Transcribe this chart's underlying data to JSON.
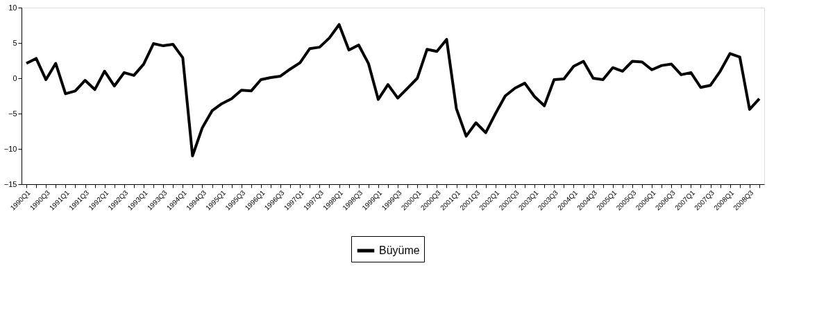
{
  "chart_data": {
    "type": "line",
    "categories": [
      "1990Q1",
      null,
      "1990Q3",
      null,
      "1991Q1",
      null,
      "1991Q3",
      null,
      "1992Q1",
      null,
      "1992Q3",
      null,
      "1993Q1",
      null,
      "1993Q3",
      null,
      "1994Q1",
      null,
      "1994Q3",
      null,
      "1995Q1",
      null,
      "1995Q3",
      null,
      "1996Q1",
      null,
      "1996Q3",
      null,
      "1997Q1",
      null,
      "1997Q3",
      null,
      "1998Q1",
      null,
      "1998Q3",
      null,
      "1999Q1",
      null,
      "1999Q3",
      null,
      "2000Q1",
      null,
      "2000Q3",
      null,
      "2001Q1",
      null,
      "2001Q3",
      null,
      "2002Q1",
      null,
      "2002Q3",
      null,
      "2003Q1",
      null,
      "2003Q3",
      null,
      "2004Q1",
      null,
      "2004Q3",
      null,
      "2005Q1",
      null,
      "2005Q3",
      null,
      "2006Q1",
      null,
      "2006Q3",
      null,
      "2007Q1",
      null,
      "2007Q3",
      null,
      "2008Q1",
      null,
      "2008Q3",
      null
    ],
    "series": [
      {
        "name": "Büyüme",
        "color": "#000000",
        "values": [
          2.1,
          2.8,
          -0.2,
          2.1,
          -2.2,
          -1.8,
          -0.3,
          -1.6,
          1.0,
          -1.1,
          0.8,
          0.4,
          2.0,
          4.9,
          4.6,
          4.8,
          2.9,
          -11.0,
          -7.0,
          -4.6,
          -3.6,
          -2.9,
          -1.7,
          -1.8,
          -0.2,
          0.1,
          0.3,
          1.3,
          2.2,
          4.2,
          4.4,
          5.7,
          7.6,
          4.0,
          4.7,
          2.1,
          -3.0,
          -0.9,
          -2.8,
          -1.4,
          0.0,
          4.1,
          3.8,
          5.5,
          -4.3,
          -8.2,
          -6.3,
          -7.7,
          -5.0,
          -2.5,
          -1.4,
          -0.7,
          -2.6,
          -3.9,
          -0.2,
          -0.1,
          1.7,
          2.4,
          0.0,
          -0.2,
          1.5,
          1.0,
          2.4,
          2.3,
          1.2,
          1.8,
          2.0,
          0.5,
          0.8,
          -1.3,
          -1.0,
          1.0,
          3.5,
          3.0,
          -4.4,
          -2.9
        ]
      }
    ],
    "ylim": [
      -15,
      10
    ],
    "yticks": [
      -15,
      -10,
      -5,
      0,
      5,
      10
    ],
    "grid": false,
    "legend": "bottom",
    "marker": "none",
    "line_style": "solid"
  }
}
